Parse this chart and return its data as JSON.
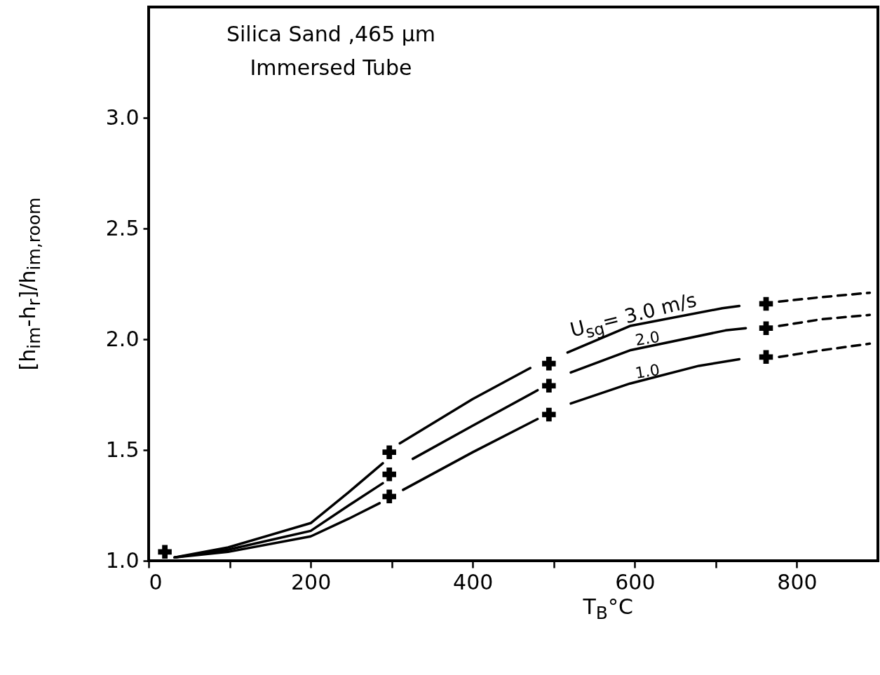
{
  "chart_data": {
    "type": "line",
    "title": "Silica Sand ,465 μm",
    "subtitle": "Immersed Tube",
    "xlabel": "T$_{B}$°C",
    "ylabel": "[h$_{im}$-h$_{r}$]/h$_{im,room}$",
    "xlim": [
      0,
      900
    ],
    "ylim": [
      1.0,
      3.5
    ],
    "xticks": [
      0,
      {
        "value": 100,
        "label": null
      },
      200,
      {
        "value": 300,
        "label": null
      },
      400,
      {
        "value": 500,
        "label": null
      },
      600,
      {
        "value": 700,
        "label": null
      },
      800
    ],
    "yticks": [
      {
        "value": 1,
        "label": "1.0"
      },
      {
        "value": 1.5,
        "label": "1.5"
      },
      {
        "value": 2,
        "label": "2.0"
      },
      {
        "value": 2.5,
        "label": "2.5"
      },
      {
        "value": 3,
        "label": "3.0"
      }
    ],
    "grid": false,
    "line_style": "solid",
    "series": [
      {
        "name": "U$_{sg}$= 3.0 m/s",
        "color": "#000000",
        "x": [
          32,
          98,
          200,
          247,
          289,
          300,
          310,
          400,
          471,
          494,
          517,
          594,
          708,
          729
        ],
        "values": [
          1.015,
          1.06,
          1.17,
          1.31,
          1.44,
          null,
          1.53,
          1.73,
          1.87,
          null,
          1.94,
          2.06,
          2.14,
          2.15
        ]
      },
      {
        "name": "2.0",
        "color": "#000000",
        "x": [
          32,
          98,
          200,
          247,
          289,
          300,
          326,
          400,
          480,
          500,
          521,
          594,
          712,
          737
        ],
        "values": [
          1.015,
          1.05,
          1.135,
          1.25,
          1.35,
          null,
          1.46,
          1.61,
          1.77,
          null,
          1.85,
          1.95,
          2.04,
          2.05
        ]
      },
      {
        "name": "1.0",
        "color": "#000000",
        "x": [
          32,
          98,
          200,
          247,
          285,
          300,
          314,
          400,
          480,
          500,
          521,
          594,
          679,
          729
        ],
        "values": [
          1.015,
          1.04,
          1.11,
          1.19,
          1.26,
          null,
          1.32,
          1.49,
          1.64,
          null,
          1.71,
          1.8,
          1.88,
          1.91
        ]
      },
      {
        "color": "#000000",
        "line_style": "dashed",
        "x": [
          778,
          830,
          890
        ],
        "values": [
          2.17,
          2.19,
          2.21
        ]
      },
      {
        "color": "#000000",
        "line_style": "dashed",
        "x": [
          778,
          830,
          890
        ],
        "values": [
          2.06,
          2.09,
          2.11
        ]
      },
      {
        "color": "#000000",
        "line_style": "dashed",
        "x": [
          778,
          830,
          890
        ],
        "values": [
          1.92,
          1.95,
          1.98
        ]
      },
      {
        "type": "scatter",
        "marker": "cross",
        "color": "#000000",
        "x": [
          20,
          297,
          297,
          297,
          494,
          494,
          494,
          762,
          762,
          762
        ],
        "values": [
          1.04,
          1.49,
          1.39,
          1.29,
          1.89,
          1.79,
          1.66,
          2.16,
          2.05,
          1.92
        ]
      }
    ]
  }
}
